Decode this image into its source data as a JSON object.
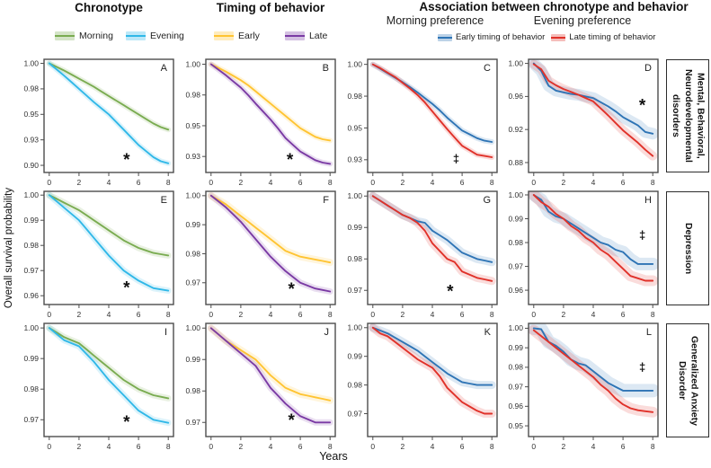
{
  "figure": {
    "col_headers": {
      "chronotype": "Chronotype",
      "timing": "Timing of behavior",
      "association": "Association between chronotype  and behavior",
      "morning_pref": "Morning preference",
      "evening_pref": "Evening preference"
    },
    "legends": {
      "chronotype": [
        {
          "label": "Morning",
          "color": "#7AAC51"
        },
        {
          "label": "Evening",
          "color": "#30B8E8"
        }
      ],
      "timing": [
        {
          "label": "Early",
          "color": "#FFC432"
        },
        {
          "label": "Late",
          "color": "#7A3AA4"
        }
      ],
      "association": [
        {
          "label": "Early timing of behavior",
          "color": "#2E74B5"
        },
        {
          "label": "Late timing of behavior",
          "color": "#E03129"
        }
      ]
    },
    "y_axis_label": "Overall survival probability",
    "x_axis_label": "Years",
    "row_labels": [
      "Mental, Behavioral,\nNeurodevelopmental\ndisorders",
      "Depression",
      "Generalized Anxiety\nDisorder"
    ]
  },
  "chart_data": [
    {
      "id": "A",
      "row": 0,
      "col": 0,
      "type": "line",
      "xlabel": "Years",
      "x_start": 0,
      "x_step": 0.5,
      "xlim": [
        -0.35,
        8.35
      ],
      "ylim": [
        0.893,
        1.004
      ],
      "xticks": [
        0,
        2,
        4,
        6,
        8
      ],
      "yticks": [
        1.0,
        0.975,
        0.95,
        0.925,
        0.9
      ],
      "ytick_labels": [
        "1.00",
        "0.98",
        "0.95",
        "0.93",
        "0.90"
      ],
      "annotation": {
        "text": "*",
        "x": 5.2,
        "y": 0.906
      },
      "series": [
        {
          "name": "Morning",
          "color": "#7AAC51",
          "band_w": 6,
          "y": [
            1.0,
            0.9965,
            0.993,
            0.989,
            0.985,
            0.981,
            0.977,
            0.9725,
            0.968,
            0.9635,
            0.959,
            0.9545,
            0.95,
            0.9455,
            0.941,
            0.9375,
            0.935
          ]
        },
        {
          "name": "Evening",
          "color": "#30B8E8",
          "band_w": 6,
          "y": [
            1.0,
            0.994,
            0.988,
            0.9815,
            0.975,
            0.9685,
            0.962,
            0.956,
            0.95,
            0.9425,
            0.935,
            0.9275,
            0.92,
            0.914,
            0.908,
            0.904,
            0.902
          ]
        }
      ]
    },
    {
      "id": "B",
      "row": 0,
      "col": 1,
      "type": "line",
      "x_start": 0,
      "x_step": 0.5,
      "xlim": [
        -0.35,
        8.35
      ],
      "ylim": [
        0.912,
        1.004
      ],
      "xticks": [
        0,
        2,
        4,
        6,
        8
      ],
      "yticks": [
        1.0,
        0.975,
        0.95,
        0.925
      ],
      "ytick_labels": [
        "1.00",
        "0.98",
        "0.95",
        "0.93"
      ],
      "annotation": {
        "text": "*",
        "x": 5.3,
        "y": 0.923
      },
      "series": [
        {
          "name": "Early",
          "color": "#FFC432",
          "band_w": 6,
          "y": [
            1.0,
            0.997,
            0.994,
            0.9905,
            0.987,
            0.9828,
            0.978,
            0.973,
            0.968,
            0.963,
            0.958,
            0.953,
            0.948,
            0.9445,
            0.941,
            0.939,
            0.938
          ]
        },
        {
          "name": "Late",
          "color": "#7A3AA4",
          "band_w": 6,
          "y": [
            1.0,
            0.9955,
            0.991,
            0.986,
            0.981,
            0.9748,
            0.968,
            0.9615,
            0.955,
            0.9478,
            0.94,
            0.9345,
            0.929,
            0.9255,
            0.922,
            0.92,
            0.919
          ]
        }
      ]
    },
    {
      "id": "C",
      "row": 0,
      "col": 2,
      "type": "line",
      "x_start": 0,
      "x_step": 0.5,
      "xlim": [
        -0.35,
        8.35
      ],
      "ylim": [
        0.915,
        1.004
      ],
      "xticks": [
        0,
        2,
        4,
        6,
        8
      ],
      "yticks": [
        1.0,
        0.975,
        0.95,
        0.925
      ],
      "ytick_labels": [
        "1.00",
        "0.98",
        "0.95",
        "0.93"
      ],
      "annotation": {
        "text": "‡",
        "x": 5.6,
        "y": 0.9255
      },
      "series": [
        {
          "name": "Early timing of behavior",
          "color": "#2E74B5",
          "band_w": 6,
          "y": [
            1.0,
            0.9965,
            0.993,
            0.9895,
            0.986,
            0.982,
            0.978,
            0.9735,
            0.969,
            0.9638,
            0.958,
            0.953,
            0.948,
            0.945,
            0.942,
            0.94,
            0.939
          ]
        },
        {
          "name": "Late timing of behavior",
          "color": "#E03129",
          "band_w": 6,
          "y": [
            1.0,
            0.997,
            0.9935,
            0.99,
            0.9855,
            0.981,
            0.976,
            0.97,
            0.963,
            0.956,
            0.949,
            0.9425,
            0.936,
            0.9325,
            0.929,
            0.928,
            0.927
          ]
        }
      ]
    },
    {
      "id": "D",
      "row": 0,
      "col": 3,
      "type": "line",
      "x_start": 0,
      "x_step": 0.5,
      "xlim": [
        -0.35,
        8.35
      ],
      "ylim": [
        0.868,
        1.005
      ],
      "xticks": [
        0,
        2,
        4,
        6,
        8
      ],
      "yticks": [
        1.0,
        0.96,
        0.92,
        0.88
      ],
      "ytick_labels": [
        "1.00",
        "0.96",
        "0.92",
        "0.88"
      ],
      "annotation": {
        "text": "*",
        "x": 7.3,
        "y": 0.95
      },
      "series": [
        {
          "name": "Early timing of behavior",
          "color": "#2E74B5",
          "band_w": 13,
          "y": [
            1.0,
            0.991,
            0.973,
            0.967,
            0.965,
            0.963,
            0.962,
            0.96,
            0.958,
            0.953,
            0.948,
            0.942,
            0.935,
            0.93,
            0.925,
            0.917,
            0.915
          ]
        },
        {
          "name": "Late timing of behavior",
          "color": "#E03129",
          "band_w": 10,
          "y": [
            0.999,
            0.993,
            0.979,
            0.9735,
            0.969,
            0.9655,
            0.962,
            0.958,
            0.954,
            0.9455,
            0.937,
            0.928,
            0.919,
            0.9115,
            0.904,
            0.8955,
            0.888
          ]
        }
      ]
    },
    {
      "id": "E",
      "row": 1,
      "col": 0,
      "type": "line",
      "x_start": 0,
      "x_step": 0.5,
      "xlim": [
        -0.35,
        8.35
      ],
      "ylim": [
        0.9565,
        1.0015
      ],
      "xticks": [
        0,
        2,
        4,
        6,
        8
      ],
      "yticks": [
        1.0,
        0.99,
        0.98,
        0.97,
        0.96
      ],
      "ytick_labels": [
        "1.00",
        "0.99",
        "0.98",
        "0.97",
        "0.96"
      ],
      "annotation": {
        "text": "*",
        "x": 5.2,
        "y": 0.9635
      },
      "series": [
        {
          "name": "Morning",
          "color": "#7AAC51",
          "band_w": 7,
          "y": [
            1.0,
            0.9985,
            0.997,
            0.9955,
            0.994,
            0.992,
            0.99,
            0.988,
            0.986,
            0.984,
            0.982,
            0.9805,
            0.979,
            0.978,
            0.977,
            0.9765,
            0.976
          ]
        },
        {
          "name": "Evening",
          "color": "#30B8E8",
          "band_w": 7,
          "y": [
            1.0,
            0.9975,
            0.995,
            0.9925,
            0.99,
            0.9865,
            0.983,
            0.9795,
            0.976,
            0.973,
            0.97,
            0.968,
            0.966,
            0.9645,
            0.963,
            0.9625,
            0.962
          ]
        }
      ]
    },
    {
      "id": "F",
      "row": 1,
      "col": 1,
      "type": "line",
      "x_start": 0,
      "x_step": 0.5,
      "xlim": [
        -0.35,
        8.35
      ],
      "ylim": [
        0.9625,
        1.0015
      ],
      "xticks": [
        0,
        2,
        4,
        6,
        8
      ],
      "yticks": [
        1.0,
        0.99,
        0.98,
        0.97
      ],
      "ytick_labels": [
        "1.00",
        "0.99",
        "0.98",
        "0.97"
      ],
      "annotation": {
        "text": "*",
        "x": 5.4,
        "y": 0.968
      },
      "series": [
        {
          "name": "Early",
          "color": "#FFC432",
          "band_w": 8,
          "y": [
            1.0,
            0.9985,
            0.997,
            0.995,
            0.993,
            0.991,
            0.989,
            0.987,
            0.985,
            0.983,
            0.981,
            0.98,
            0.979,
            0.9785,
            0.978,
            0.9775,
            0.977
          ]
        },
        {
          "name": "Late",
          "color": "#7A3AA4",
          "band_w": 7,
          "y": [
            1.0,
            0.998,
            0.996,
            0.9935,
            0.991,
            0.988,
            0.985,
            0.982,
            0.979,
            0.9765,
            0.974,
            0.972,
            0.97,
            0.969,
            0.968,
            0.9675,
            0.967
          ]
        }
      ]
    },
    {
      "id": "G",
      "row": 1,
      "col": 2,
      "type": "line",
      "x_start": 0,
      "x_step": 0.5,
      "xlim": [
        -0.35,
        8.35
      ],
      "ylim": [
        0.9655,
        1.0015
      ],
      "xticks": [
        0,
        2,
        4,
        6,
        8
      ],
      "yticks": [
        1.0,
        0.99,
        0.98,
        0.97
      ],
      "ytick_labels": [
        "1.00",
        "0.99",
        "0.98",
        "0.97"
      ],
      "annotation": {
        "text": "*",
        "x": 5.2,
        "y": 0.97
      },
      "series": [
        {
          "name": "Early timing of behavior",
          "color": "#2E74B5",
          "band_w": 9,
          "y": [
            1.0,
            0.9985,
            0.997,
            0.9955,
            0.994,
            0.993,
            0.992,
            0.9915,
            0.989,
            0.9875,
            0.986,
            0.984,
            0.982,
            0.981,
            0.98,
            0.9795,
            0.979
          ]
        },
        {
          "name": "Late timing of behavior",
          "color": "#E03129",
          "band_w": 9,
          "y": [
            1.0,
            0.9985,
            0.997,
            0.9955,
            0.994,
            0.993,
            0.9915,
            0.989,
            0.985,
            0.9825,
            0.98,
            0.979,
            0.976,
            0.975,
            0.974,
            0.9735,
            0.973
          ]
        }
      ]
    },
    {
      "id": "H",
      "row": 1,
      "col": 3,
      "type": "line",
      "x_start": 0,
      "x_step": 0.5,
      "xlim": [
        -0.35,
        8.35
      ],
      "ylim": [
        0.954,
        1.0015
      ],
      "xticks": [
        0,
        2,
        4,
        6,
        8
      ],
      "yticks": [
        1.0,
        0.99,
        0.98,
        0.97,
        0.96
      ],
      "ytick_labels": [
        "1.00",
        "0.99",
        "0.98",
        "0.97",
        "0.96"
      ],
      "annotation": {
        "text": "‡",
        "x": 7.3,
        "y": 0.983
      },
      "series": [
        {
          "name": "Early timing of behavior",
          "color": "#2E74B5",
          "band_w": 14,
          "y": [
            1.0,
            0.998,
            0.993,
            0.991,
            0.99,
            0.988,
            0.986,
            0.984,
            0.982,
            0.98,
            0.979,
            0.977,
            0.976,
            0.973,
            0.971,
            0.971,
            0.971
          ]
        },
        {
          "name": "Late timing of behavior",
          "color": "#E03129",
          "band_w": 12,
          "y": [
            1.0,
            0.997,
            0.995,
            0.992,
            0.99,
            0.987,
            0.985,
            0.982,
            0.98,
            0.977,
            0.975,
            0.972,
            0.969,
            0.966,
            0.965,
            0.964,
            0.964
          ]
        }
      ]
    },
    {
      "id": "I",
      "row": 2,
      "col": 0,
      "type": "line",
      "x_start": 0,
      "x_step": 0.5,
      "xlim": [
        -0.35,
        8.35
      ],
      "ylim": [
        0.9645,
        1.0015
      ],
      "xticks": [
        0,
        2,
        4,
        6,
        8
      ],
      "yticks": [
        1.0,
        0.99,
        0.98,
        0.97
      ],
      "ytick_labels": [
        "1.00",
        "0.99",
        "0.98",
        "0.97"
      ],
      "annotation": {
        "text": "*",
        "x": 5.2,
        "y": 0.9695
      },
      "series": [
        {
          "name": "Morning",
          "color": "#7AAC51",
          "band_w": 7,
          "y": [
            1.0,
            0.9985,
            0.997,
            0.996,
            0.995,
            0.993,
            0.991,
            0.989,
            0.987,
            0.985,
            0.983,
            0.9815,
            0.98,
            0.979,
            0.978,
            0.9775,
            0.977
          ]
        },
        {
          "name": "Evening",
          "color": "#30B8E8",
          "band_w": 7,
          "y": [
            1.0,
            0.998,
            0.996,
            0.995,
            0.994,
            0.9915,
            0.989,
            0.986,
            0.983,
            0.9805,
            0.978,
            0.9755,
            0.973,
            0.9715,
            0.97,
            0.9695,
            0.969
          ]
        }
      ]
    },
    {
      "id": "J",
      "row": 2,
      "col": 1,
      "type": "line",
      "x_start": 0,
      "x_step": 0.5,
      "xlim": [
        -0.35,
        8.35
      ],
      "ylim": [
        0.9655,
        1.0015
      ],
      "xticks": [
        0,
        2,
        4,
        6,
        8
      ],
      "yticks": [
        1.0,
        0.99,
        0.98,
        0.97
      ],
      "ytick_labels": [
        "1.00",
        "0.99",
        "0.98",
        "0.97"
      ],
      "annotation": {
        "text": "*",
        "x": 5.4,
        "y": 0.971
      },
      "series": [
        {
          "name": "Early",
          "color": "#FFC432",
          "band_w": 8,
          "y": [
            1.0,
            0.998,
            0.996,
            0.9945,
            0.993,
            0.9915,
            0.99,
            0.9875,
            0.985,
            0.983,
            0.981,
            0.98,
            0.979,
            0.9785,
            0.978,
            0.9775,
            0.977
          ]
        },
        {
          "name": "Late",
          "color": "#7A3AA4",
          "band_w": 7,
          "y": [
            1.0,
            0.998,
            0.996,
            0.994,
            0.992,
            0.99,
            0.988,
            0.9845,
            0.981,
            0.9785,
            0.976,
            0.974,
            0.972,
            0.971,
            0.97,
            0.97,
            0.97
          ]
        }
      ]
    },
    {
      "id": "K",
      "row": 2,
      "col": 2,
      "type": "line",
      "x_start": 0,
      "x_step": 0.5,
      "xlim": [
        -0.35,
        8.35
      ],
      "ylim": [
        0.962,
        1.0015
      ],
      "xticks": [
        0,
        2,
        4,
        6,
        8
      ],
      "yticks": [
        1.0,
        0.99,
        0.98,
        0.97
      ],
      "ytick_labels": [
        "1.00",
        "0.99",
        "0.98",
        "0.97"
      ],
      "annotation": null,
      "series": [
        {
          "name": "Early timing of behavior",
          "color": "#2E74B5",
          "band_w": 9,
          "y": [
            1.0,
            0.999,
            0.998,
            0.9965,
            0.995,
            0.9935,
            0.992,
            0.99,
            0.988,
            0.986,
            0.984,
            0.9825,
            0.981,
            0.9805,
            0.98,
            0.98,
            0.98
          ]
        },
        {
          "name": "Late timing of behavior",
          "color": "#E03129",
          "band_w": 9,
          "y": [
            1.0,
            0.998,
            0.997,
            0.995,
            0.993,
            0.991,
            0.989,
            0.9875,
            0.986,
            0.983,
            0.979,
            0.9765,
            0.974,
            0.9725,
            0.971,
            0.97,
            0.97
          ]
        }
      ]
    },
    {
      "id": "L",
      "row": 2,
      "col": 3,
      "type": "line",
      "x_start": 0,
      "x_step": 0.5,
      "xlim": [
        -0.35,
        8.35
      ],
      "ylim": [
        0.9445,
        1.0025
      ],
      "xticks": [
        0,
        2,
        4,
        6,
        8
      ],
      "yticks": [
        1.0,
        0.99,
        0.98,
        0.97,
        0.96,
        0.95
      ],
      "ytick_labels": [
        "1.00",
        "0.99",
        "0.98",
        "0.97",
        "0.96",
        "0.95"
      ],
      "annotation": {
        "text": "‡",
        "x": 7.3,
        "y": 0.98
      },
      "series": [
        {
          "name": "Early timing of behavior",
          "color": "#2E74B5",
          "band_w": 15,
          "y": [
            1.0,
            0.9995,
            0.993,
            0.991,
            0.988,
            0.984,
            0.982,
            0.981,
            0.978,
            0.975,
            0.972,
            0.97,
            0.968,
            0.968,
            0.968,
            0.968,
            0.968
          ]
        },
        {
          "name": "Late timing of behavior",
          "color": "#E03129",
          "band_w": 12,
          "y": [
            0.999,
            0.996,
            0.993,
            0.99,
            0.987,
            0.984,
            0.981,
            0.978,
            0.975,
            0.971,
            0.968,
            0.964,
            0.961,
            0.959,
            0.958,
            0.9575,
            0.957
          ]
        }
      ]
    }
  ]
}
